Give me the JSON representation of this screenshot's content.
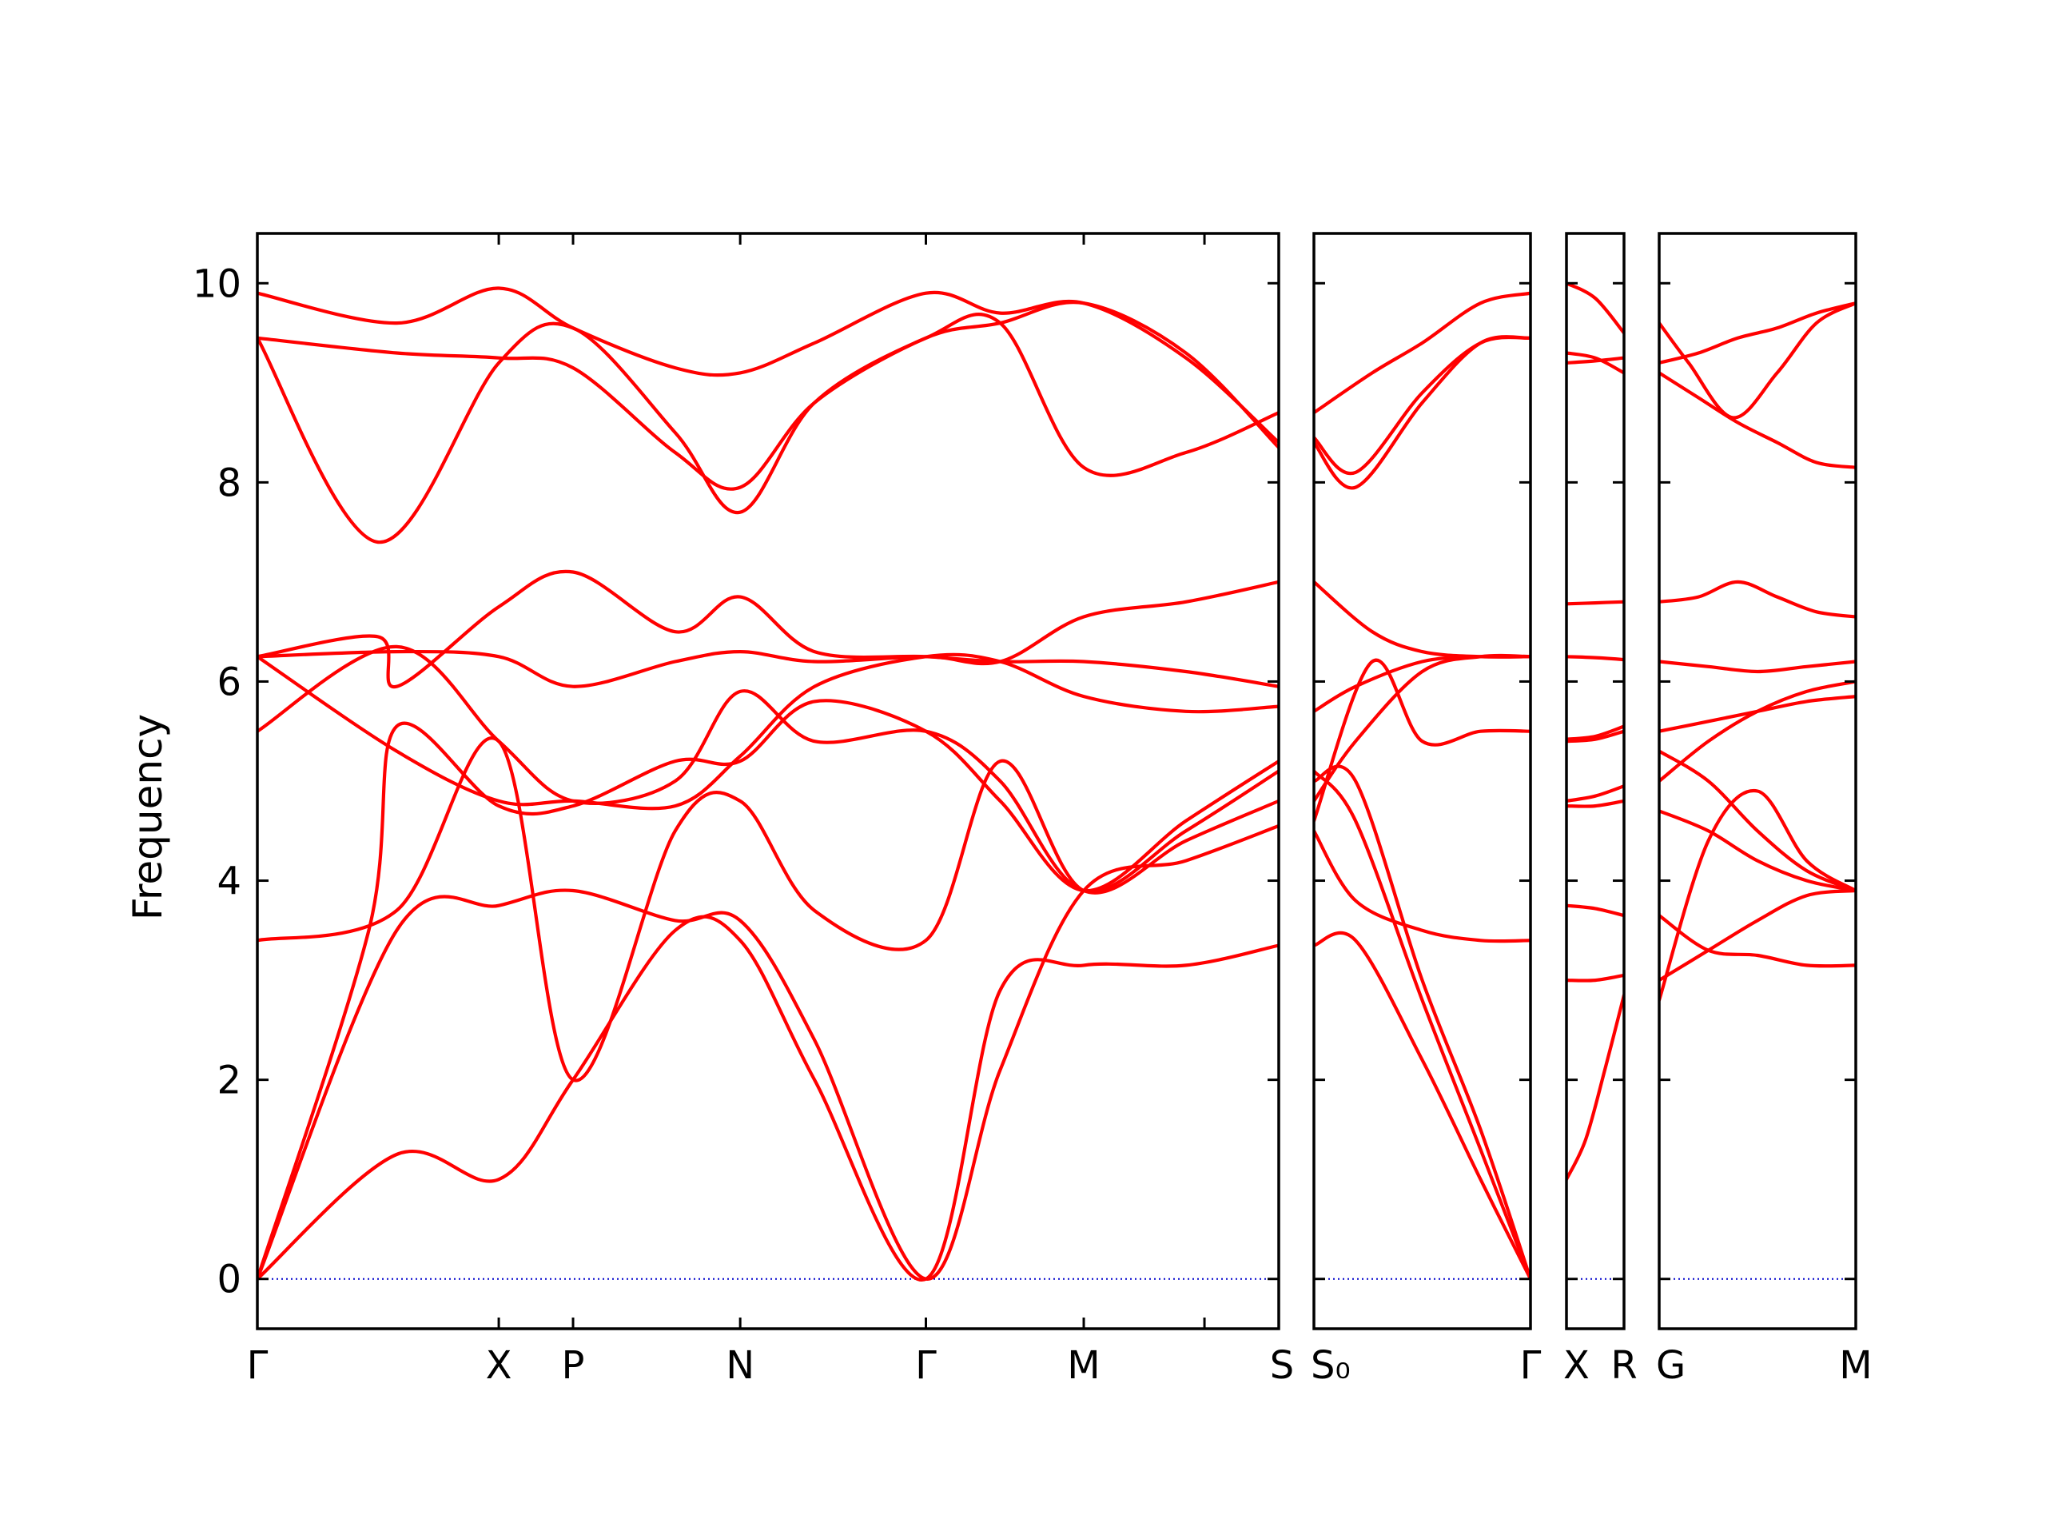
{
  "chart_data": {
    "type": "line",
    "ylabel": "Frequency",
    "ylim": [
      -0.5,
      10.5
    ],
    "yticks": [
      0,
      2,
      4,
      6,
      8,
      10
    ],
    "line_color": "#ff0000",
    "zero_line_color": "#0000cc",
    "segments": [
      {
        "x_range": [
          0,
          11
        ],
        "tick_positions": [
          0,
          2.6,
          3.4,
          5.2,
          7.2,
          8.9,
          10.2,
          11
        ],
        "tick_labels": [
          "Γ",
          "X",
          "P",
          "N",
          "Γ",
          "M",
          "",
          "S"
        ],
        "series": [
          {
            "x": [
              0,
              1.5,
              2.6,
              3.4,
              4.5,
              5.2,
              6,
              7.2,
              8,
              8.9,
              10,
              11
            ],
            "y": [
              0,
              1.25,
              1,
              2,
              3.5,
              3.4,
              2,
              0,
              2.9,
              3.15,
              3.15,
              3.35
            ]
          },
          {
            "x": [
              0,
              1.5,
              2.6,
              3.4,
              4.5,
              5.2,
              6,
              7.2,
              8,
              8.9,
              10,
              11
            ],
            "y": [
              0,
              3.5,
              3.75,
              3.9,
              3.6,
              3.6,
              2.4,
              0,
              2.1,
              3.9,
              4.2,
              4.55
            ]
          },
          {
            "x": [
              0,
              1.5,
              2.6,
              3.4,
              4.5,
              5.2,
              6,
              7.2,
              8,
              8.9,
              10,
              11
            ],
            "y": [
              3.4,
              3.7,
              5.4,
              2,
              4.5,
              4.8,
              3.7,
              3.4,
              5.2,
              3.9,
              4.4,
              4.8
            ]
          },
          {
            "x": [
              0,
              1.2,
              1.5,
              2.6,
              3.4,
              4.5,
              5.2,
              6,
              7.2,
              8,
              8.9,
              10,
              11
            ],
            "y": [
              0,
              3.5,
              5.55,
              4.75,
              4.75,
              5.2,
              5.2,
              5.8,
              5.5,
              4.8,
              3.9,
              4.6,
              5.2
            ]
          },
          {
            "x": [
              0,
              1.5,
              2.6,
              3.4,
              4.5,
              5.2,
              6,
              7.2,
              8,
              8.9,
              10,
              11
            ],
            "y": [
              5.5,
              6.35,
              5.4,
              4.8,
              5,
              5.9,
              5.4,
              5.5,
              5,
              3.9,
              4.5,
              5.1
            ]
          },
          {
            "x": [
              0,
              1.5,
              2.6,
              3.4,
              4.5,
              5.2,
              6,
              7.2,
              8,
              8.9,
              10,
              11
            ],
            "y": [
              6.25,
              5.3,
              4.8,
              4.8,
              4.75,
              5.25,
              5.95,
              6.25,
              6.2,
              5.85,
              5.7,
              5.75
            ]
          },
          {
            "x": [
              0,
              1.3,
              1.5,
              2.6,
              3.4,
              4.5,
              5.2,
              6,
              7.2,
              8,
              8.9,
              10,
              11
            ],
            "y": [
              6.25,
              6.45,
              5.95,
              6.75,
              7.1,
              6.5,
              6.85,
              6.3,
              6.25,
              6.2,
              6.2,
              6.1,
              5.95
            ]
          },
          {
            "x": [
              0,
              1.5,
              2.6,
              3.4,
              4.5,
              5.2,
              6,
              7.2,
              8,
              8.9,
              10,
              11
            ],
            "y": [
              6.25,
              6.3,
              6.25,
              5.95,
              6.2,
              6.3,
              6.2,
              6.25,
              6.2,
              6.65,
              6.8,
              7
            ]
          },
          {
            "x": [
              0,
              1.3,
              2.6,
              3.4,
              4.5,
              5.2,
              6,
              7.2,
              8,
              8.9,
              10,
              11
            ],
            "y": [
              9.45,
              7.4,
              9.2,
              9.55,
              8.5,
              7.7,
              8.8,
              9.45,
              9.6,
              8.15,
              8.3,
              8.7
            ]
          },
          {
            "x": [
              0,
              1.5,
              2.6,
              3.4,
              4.5,
              5.2,
              6,
              7.2,
              8,
              8.9,
              10,
              11
            ],
            "y": [
              9.45,
              9.3,
              9.25,
              9.15,
              8.3,
              7.95,
              8.8,
              9.45,
              9.6,
              9.8,
              9.3,
              8.35
            ]
          },
          {
            "x": [
              0,
              1.5,
              2.6,
              3.4,
              4.5,
              5.2,
              6,
              7.2,
              8,
              8.9,
              10,
              11
            ],
            "y": [
              9.9,
              9.6,
              9.95,
              9.55,
              9.15,
              9.1,
              9.4,
              9.9,
              9.7,
              9.8,
              9.25,
              8.4
            ]
          }
        ]
      },
      {
        "x_range": [
          0,
          2.6
        ],
        "tick_positions": [
          0,
          2.6
        ],
        "tick_labels": [
          "S₀",
          "Γ"
        ],
        "series": [
          {
            "x": [
              0,
              0.5,
              1.3,
              2,
              2.6
            ],
            "y": [
              3.35,
              3.4,
              2.2,
              1,
              0
            ]
          },
          {
            "x": [
              0,
              0.5,
              1.3,
              2,
              2.6
            ],
            "y": [
              4.5,
              3.8,
              3.5,
              3.4,
              3.4
            ]
          },
          {
            "x": [
              0,
              0.5,
              1.3,
              2,
              2.6
            ],
            "y": [
              5,
              5,
              3,
              1.5,
              0
            ]
          },
          {
            "x": [
              0,
              0.5,
              1.3,
              2,
              2.6
            ],
            "y": [
              5.1,
              4.6,
              2.8,
              1.3,
              0
            ]
          },
          {
            "x": [
              0,
              0.7,
              1.3,
              2,
              2.6
            ],
            "y": [
              4.6,
              6.2,
              5.4,
              5.5,
              5.5
            ]
          },
          {
            "x": [
              0,
              0.5,
              1.3,
              2,
              2.6
            ],
            "y": [
              5.7,
              5.95,
              6.2,
              6.25,
              6.25
            ]
          },
          {
            "x": [
              0,
              0.5,
              1.3,
              2,
              2.6
            ],
            "y": [
              4.8,
              5.4,
              6.1,
              6.25,
              6.25
            ]
          },
          {
            "x": [
              0,
              0.7,
              1.3,
              2,
              2.6
            ],
            "y": [
              7,
              6.5,
              6.3,
              6.25,
              6.25
            ]
          },
          {
            "x": [
              0,
              0.5,
              1.3,
              2,
              2.6
            ],
            "y": [
              8.4,
              7.95,
              8.8,
              9.4,
              9.45
            ]
          },
          {
            "x": [
              0,
              0.5,
              1.3,
              2,
              2.6
            ],
            "y": [
              8.45,
              8.1,
              8.9,
              9.4,
              9.45
            ]
          },
          {
            "x": [
              0,
              0.7,
              1.3,
              2,
              2.6
            ],
            "y": [
              8.7,
              9.1,
              9.4,
              9.8,
              9.9
            ]
          }
        ]
      },
      {
        "x_range": [
          0,
          0.6
        ],
        "tick_positions": [
          0,
          0.6
        ],
        "tick_labels": [
          "X",
          "R"
        ],
        "series": [
          {
            "x": [
              0,
              0.2,
              0.4,
              0.6
            ],
            "y": [
              1,
              1.4,
              2.1,
              2.85
            ]
          },
          {
            "x": [
              0,
              0.3,
              0.6
            ],
            "y": [
              3,
              3,
              3.05
            ]
          },
          {
            "x": [
              0,
              0.3,
              0.6
            ],
            "y": [
              3.75,
              3.72,
              3.65
            ]
          },
          {
            "x": [
              0,
              0.3,
              0.6
            ],
            "y": [
              4.75,
              4.75,
              4.8
            ]
          },
          {
            "x": [
              0,
              0.3,
              0.6
            ],
            "y": [
              4.8,
              4.85,
              4.95
            ]
          },
          {
            "x": [
              0,
              0.3,
              0.6
            ],
            "y": [
              5.4,
              5.42,
              5.5
            ]
          },
          {
            "x": [
              0,
              0.3,
              0.6
            ],
            "y": [
              5.42,
              5.45,
              5.55
            ]
          },
          {
            "x": [
              0,
              0.3,
              0.6
            ],
            "y": [
              6.25,
              6.24,
              6.22
            ]
          },
          {
            "x": [
              0,
              0.3,
              0.6
            ],
            "y": [
              6.78,
              6.79,
              6.8
            ]
          },
          {
            "x": [
              0,
              0.3,
              0.6
            ],
            "y": [
              9.2,
              9.22,
              9.25
            ]
          },
          {
            "x": [
              0,
              0.3,
              0.6
            ],
            "y": [
              9.3,
              9.25,
              9.1
            ]
          },
          {
            "x": [
              0,
              0.3,
              0.6
            ],
            "y": [
              10,
              9.85,
              9.5
            ]
          }
        ]
      },
      {
        "x_range": [
          0,
          2
        ],
        "tick_positions": [
          0,
          2
        ],
        "tick_labels": [
          "G",
          "M"
        ],
        "series": [
          {
            "x": [
              0,
              0.5,
              1,
              1.5,
              2
            ],
            "y": [
              2.8,
              4.4,
              4.9,
              4.2,
              3.9
            ]
          },
          {
            "x": [
              0,
              0.5,
              1,
              1.5,
              2
            ],
            "y": [
              3,
              3.3,
              3.6,
              3.85,
              3.9
            ]
          },
          {
            "x": [
              0,
              0.5,
              1,
              1.5,
              2
            ],
            "y": [
              3.65,
              3.3,
              3.25,
              3.15,
              3.15
            ]
          },
          {
            "x": [
              0,
              0.5,
              1,
              1.5,
              2
            ],
            "y": [
              4.7,
              4.5,
              4.2,
              4.0,
              3.9
            ]
          },
          {
            "x": [
              0,
              0.5,
              1,
              1.5,
              2
            ],
            "y": [
              5.0,
              5.4,
              5.7,
              5.9,
              6.0
            ]
          },
          {
            "x": [
              0,
              0.5,
              1,
              1.5,
              2
            ],
            "y": [
              5.3,
              5.0,
              4.5,
              4.1,
              3.9
            ]
          },
          {
            "x": [
              0,
              0.5,
              1,
              1.5,
              2
            ],
            "y": [
              5.5,
              5.6,
              5.7,
              5.8,
              5.85
            ]
          },
          {
            "x": [
              0,
              0.5,
              1,
              1.5,
              2
            ],
            "y": [
              6.2,
              6.15,
              6.1,
              6.15,
              6.2
            ]
          },
          {
            "x": [
              0,
              0.4,
              0.8,
              1.2,
              1.6,
              2
            ],
            "y": [
              6.8,
              6.85,
              7.0,
              6.85,
              6.7,
              6.65
            ]
          },
          {
            "x": [
              0,
              0.4,
              0.8,
              1.2,
              1.6,
              2
            ],
            "y": [
              9.1,
              8.85,
              8.6,
              8.4,
              8.2,
              8.15
            ]
          },
          {
            "x": [
              0,
              0.4,
              0.8,
              1.2,
              1.6,
              2
            ],
            "y": [
              9.2,
              9.3,
              9.45,
              9.55,
              9.7,
              9.8
            ]
          },
          {
            "x": [
              0,
              0.3,
              0.75,
              1.2,
              1.6,
              2
            ],
            "y": [
              9.6,
              9.2,
              8.65,
              9.1,
              9.6,
              9.8
            ]
          }
        ]
      }
    ]
  }
}
